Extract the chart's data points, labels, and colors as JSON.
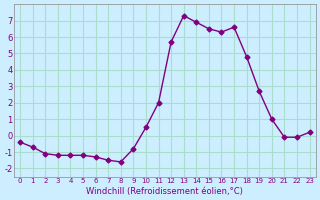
{
  "x": [
    0,
    1,
    2,
    3,
    4,
    5,
    6,
    7,
    8,
    9,
    10,
    11,
    12,
    13,
    14,
    15,
    16,
    17,
    18,
    19,
    20,
    21,
    22,
    23
  ],
  "y": [
    -0.4,
    -0.7,
    -1.1,
    -1.2,
    -1.2,
    -1.2,
    -1.3,
    -1.5,
    -1.6,
    -0.8,
    0.5,
    2.0,
    5.7,
    7.3,
    6.9,
    6.5,
    6.3,
    6.6,
    4.8,
    2.7,
    1.0,
    -0.1,
    -0.1,
    0.2
  ],
  "line_color": "#800080",
  "marker_color": "#800080",
  "bg_color": "#cceeff",
  "grid_color": "#aaddcc",
  "xlabel": "Windchill (Refroidissement éolien,°C)",
  "ylabel_ticks": [
    -2,
    -1,
    0,
    1,
    2,
    3,
    4,
    5,
    6,
    7
  ],
  "xticks": [
    0,
    1,
    2,
    3,
    4,
    5,
    6,
    7,
    8,
    9,
    10,
    11,
    12,
    13,
    14,
    15,
    16,
    17,
    18,
    19,
    20,
    21,
    22,
    23
  ],
  "ylim": [
    -2.5,
    8.0
  ],
  "xlim": [
    -0.5,
    23.5
  ]
}
